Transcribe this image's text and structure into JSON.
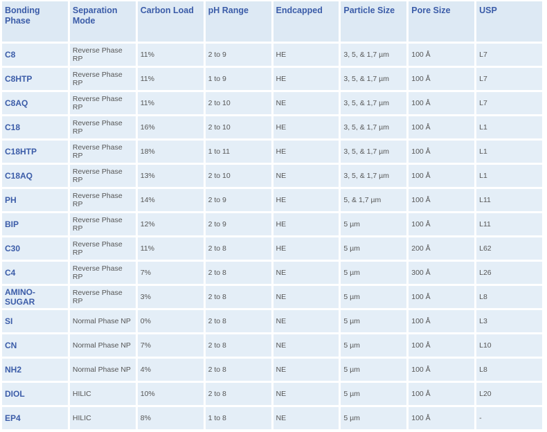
{
  "table": {
    "header": [
      "Bonding Phase",
      "Separation Mode",
      "Carbon Load",
      "pH Range",
      "Endcapped",
      "Particle Size",
      "Pore Size",
      "USP"
    ],
    "rows": [
      [
        "C8",
        "Reverse Phase RP",
        "11%",
        "2 to 9",
        "HE",
        "3, 5, & 1,7 µm",
        "100 Å",
        "L7"
      ],
      [
        "C8HTP",
        "Reverse Phase RP",
        "11%",
        "1 to 9",
        "HE",
        "3, 5, & 1,7 µm",
        "100 Å",
        "L7"
      ],
      [
        "C8AQ",
        "Reverse Phase RP",
        "11%",
        "2 to 10",
        "NE",
        "3, 5, & 1,7 µm",
        "100 Å",
        "L7"
      ],
      [
        "C18",
        "Reverse Phase RP",
        "16%",
        "2 to 10",
        "HE",
        "3, 5, & 1,7 µm",
        "100 Å",
        "L1"
      ],
      [
        "C18HTP",
        "Reverse Phase RP",
        "18%",
        "1 to 11",
        "HE",
        "3, 5, & 1,7 µm",
        "100 Å",
        "L1"
      ],
      [
        "C18AQ",
        "Reverse Phase RP",
        "13%",
        "2 to 10",
        "NE",
        "3, 5, & 1,7 µm",
        "100 Å",
        "L1"
      ],
      [
        "PH",
        "Reverse Phase RP",
        "14%",
        "2 to 9",
        "HE",
        "5, & 1,7 µm",
        "100 Å",
        "L11"
      ],
      [
        "BIP",
        "Reverse Phase RP",
        "12%",
        "2 to 9",
        "HE",
        "5 µm",
        "100 Å",
        "L11"
      ],
      [
        "C30",
        "Reverse Phase RP",
        "11%",
        "2 to 8",
        "HE",
        "5 µm",
        "200 Å",
        "L62"
      ],
      [
        "C4",
        "Reverse Phase RP",
        "7%",
        "2 to 8",
        "NE",
        "5 µm",
        "300 Å",
        "L26"
      ],
      [
        "AMINO-SUGAR",
        "Reverse Phase RP",
        "3%",
        "2 to 8",
        "NE",
        "5 µm",
        "100 Å",
        "L8"
      ],
      [
        "SI",
        "Normal Phase NP",
        "0%",
        "2 to 8",
        "NE",
        "5 µm",
        "100 Å",
        "L3"
      ],
      [
        "CN",
        "Normal Phase NP",
        "7%",
        "2 to 8",
        "NE",
        "5 µm",
        "100 Å",
        "L10"
      ],
      [
        "NH2",
        "Normal Phase NP",
        "4%",
        "2 to 8",
        "NE",
        "5 µm",
        "100 Å",
        "L8"
      ],
      [
        "DIOL",
        "HILIC",
        "10%",
        "2 to 8",
        "NE",
        "5 µm",
        "100 Å",
        "L20"
      ],
      [
        "EP4",
        "HILIC",
        "8%",
        "1 to 8",
        "NE",
        "5 µm",
        "100 Å",
        "-"
      ]
    ]
  }
}
